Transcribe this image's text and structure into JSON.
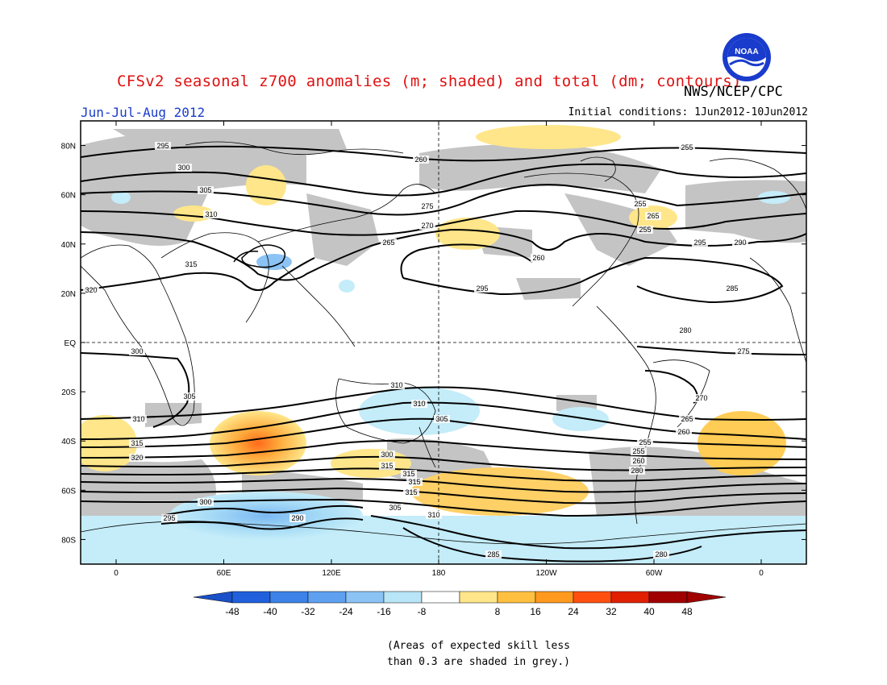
{
  "header": {
    "title": "CFSv2 seasonal z700 anomalies (m; shaded) and total (dm; contours)",
    "agency": "NWS/NCEP/CPC",
    "period": "Jun-Jul-Aug 2012",
    "initial_conditions": "Initial conditions: 1Jun2012-10Jun2012"
  },
  "logo": {
    "text": "NOAA",
    "icon": "noaa-logo-icon"
  },
  "map": {
    "lat_labels": [
      "80N",
      "60N",
      "40N",
      "20N",
      "EQ",
      "20S",
      "40S",
      "60S",
      "80S"
    ],
    "lon_labels": [
      "0",
      "60E",
      "120E",
      "180",
      "120W",
      "60W",
      "0"
    ],
    "contour_labels": [
      "295",
      "300",
      "305",
      "310",
      "315",
      "320",
      "295",
      "300",
      "305",
      "310",
      "315",
      "320",
      "310",
      "310",
      "305",
      "300",
      "315",
      "315",
      "315",
      "315",
      "310",
      "305",
      "300",
      "295",
      "290",
      "285",
      "280",
      "275",
      "270",
      "265",
      "260",
      "255",
      "260",
      "255",
      "265",
      "255",
      "295",
      "290",
      "285",
      "280",
      "275",
      "270",
      "265",
      "260",
      "255",
      "255",
      "260",
      "280"
    ],
    "colors": {
      "land_outline": "#000000",
      "skill_grey": "#c0c0c0",
      "contour": "#000000"
    }
  },
  "colorbar": {
    "ticks": [
      "-48",
      "-40",
      "-32",
      "-24",
      "-16",
      "-8",
      "8",
      "16",
      "24",
      "32",
      "40",
      "48"
    ],
    "colors": [
      "#2060dc",
      "#3c82e8",
      "#5fa0f0",
      "#8cc3f5",
      "#b8e6f8",
      "#ffffff",
      "#ffe68a",
      "#ffc040",
      "#ff9a1e",
      "#ff5010",
      "#e02000",
      "#a00000"
    ],
    "left_end_color": "#1a50c8",
    "right_end_color": "#a00000"
  },
  "footnote": {
    "line1": "(Areas of expected skill less",
    "line2": "than 0.3 are shaded in grey.)"
  }
}
